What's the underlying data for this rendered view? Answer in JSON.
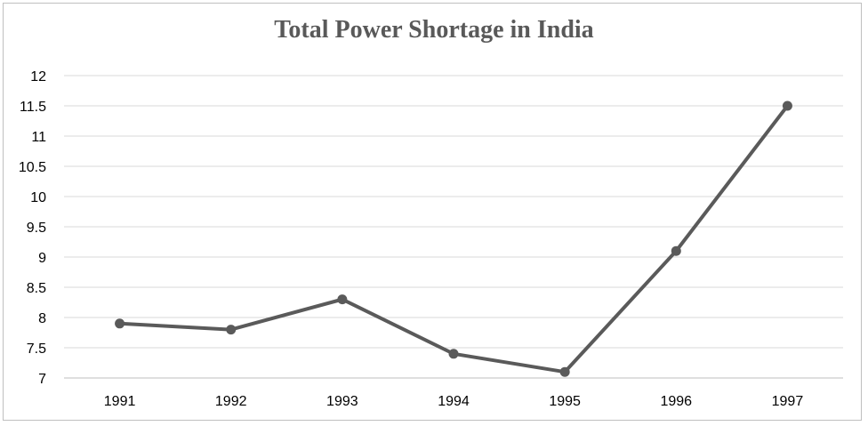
{
  "chart_data": {
    "type": "line",
    "title": "Total Power Shortage in India",
    "xlabel": "",
    "ylabel": "",
    "categories": [
      "1991",
      "1992",
      "1993",
      "1994",
      "1995",
      "1996",
      "1997"
    ],
    "series": [
      {
        "values": [
          7.9,
          7.8,
          8.3,
          7.4,
          7.1,
          9.1,
          11.5
        ]
      }
    ],
    "ylim": [
      7,
      12
    ],
    "yticks": [
      "7",
      "7.5",
      "8",
      "8.5",
      "9",
      "9.5",
      "10",
      "10.5",
      "11",
      "11.5",
      "12"
    ],
    "grid": true,
    "legend": "none",
    "colors": {
      "line": "#5a5a5a",
      "grid": "#d9d9d9",
      "axis": "#bfbfbf"
    }
  }
}
